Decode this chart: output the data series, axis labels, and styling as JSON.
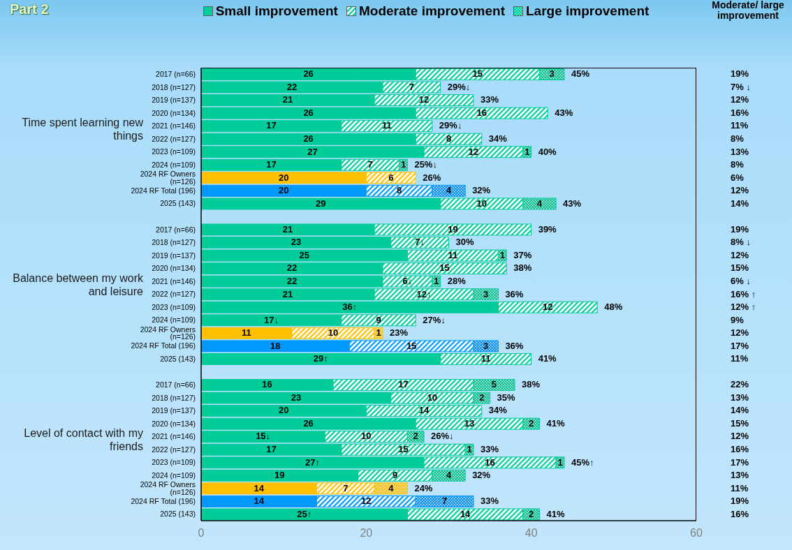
{
  "chart_data": {
    "type": "bar",
    "orientation": "horizontal",
    "stacked": true,
    "title": "Part 2",
    "legend": "top",
    "grid": false,
    "xlim": [
      0,
      60
    ],
    "xticks": [
      0,
      20,
      40,
      60
    ],
    "categories": [
      "2017 (n=66)",
      "2018 (n=127)",
      "2019 (n=137)",
      "2020 (n=134)",
      "2021 (n=146)",
      "2022 (n=127)",
      "2023 (n=109)",
      "2024 (n=109)",
      "2024 RF Owners (n=126)",
      "2024 RF Total (196)",
      "2025 (143)",
      null,
      "2017 (n=66)",
      "2018 (n=127)",
      "2019 (n=137)",
      "2020 (n=134)",
      "2021 (n=146)",
      "2022 (n=127)",
      "2023 (n=109)",
      "2024 (n=109)",
      "2024 RF Owners (n=126)",
      "2024 RF Total (196)",
      "2025 (143)",
      null,
      "2017 (n=66)",
      "2018 (n=127)",
      "2019 (n=137)",
      "2020 (n=134)",
      "2021 (n=146)",
      "2022 (n=127)",
      "2023 (n=109)",
      "2024 (n=109)",
      "2024 RF Owners (n=126)",
      "2024 RF Total (196)",
      "2025 (143)"
    ],
    "annotations": [
      "Time spent learning new things",
      "Balance between my work and leisure",
      "Level of contact with my friends"
    ],
    "y2label": "Moderate/ large improvement",
    "y2_categories": [
      "19%",
      "7% ↓",
      "12%",
      "16%",
      "11%",
      "8%",
      "13%",
      "8%",
      "6%",
      "12%",
      "14%",
      null,
      "19%",
      "8% ↓",
      "12%",
      "15%",
      "6% ↓",
      "16% ↑",
      "12% ↑",
      "9%",
      "12%",
      "17%",
      "11%",
      null,
      "22%",
      "13%",
      "14%",
      "15%",
      "12%",
      "16%",
      "17%",
      "13%",
      "11%",
      "19%",
      "16%"
    ],
    "totals": [
      "45%",
      "29%↓",
      "33%",
      "43%",
      "29%↓",
      "34%",
      "40%",
      "25%↓",
      "26%",
      "32%",
      "43%",
      null,
      "39%",
      "30%",
      "37%",
      "38%",
      "28%",
      "36%",
      "48%",
      "27%↓",
      "23%",
      "36%",
      "41%",
      null,
      "38%",
      "35%",
      "34%",
      "41%",
      "26%↓",
      "33%",
      "45%↑",
      "32%",
      "24%",
      "33%",
      "41%"
    ],
    "series": [
      {
        "name": "Small improvement",
        "color": "#00cc99",
        "colors": [
          "#00cc99",
          "#00cc99",
          "#00cc99",
          "#00cc99",
          "#00cc99",
          "#00cc99",
          "#00cc99",
          "#00cc99",
          "#ffc000",
          "#0099ff",
          "#00cc99",
          null,
          "#00cc99",
          "#00cc99",
          "#00cc99",
          "#00cc99",
          "#00cc99",
          "#00cc99",
          "#00cc99",
          "#00cc99",
          "#ffc000",
          "#0099ff",
          "#00cc99",
          null,
          "#00cc99",
          "#00cc99",
          "#00cc99",
          "#00cc99",
          "#00cc99",
          "#00cc99",
          "#00cc99",
          "#00cc99",
          "#ffc000",
          "#0099ff",
          "#00cc99"
        ],
        "values": [
          26,
          22,
          21,
          26,
          17,
          26,
          27,
          17,
          20,
          20,
          29,
          null,
          21,
          23,
          25,
          22,
          22,
          21,
          36,
          17,
          11,
          18,
          29,
          null,
          16,
          23,
          20,
          26,
          15,
          17,
          27,
          19,
          14,
          14,
          25
        ],
        "value_labels": [
          "26",
          "22",
          "21",
          "26",
          "17",
          "26",
          "27",
          "17",
          "20",
          "20",
          "29",
          null,
          "21",
          "23",
          "25",
          "22",
          "22",
          "21",
          "36↑",
          "17↓",
          "11",
          "18",
          "29↑",
          null,
          "16",
          "23",
          "20",
          "26",
          "15↓",
          "17",
          "27↑",
          "19",
          "14",
          "14",
          "25↑"
        ]
      },
      {
        "name": "Moderate improvement",
        "color": "#00cc99",
        "colors": [
          "#00cc99",
          "#00cc99",
          "#00cc99",
          "#00cc99",
          "#00cc99",
          "#00cc99",
          "#00cc99",
          "#00cc99",
          "#ffc000",
          "#0099ff",
          "#00cc99",
          null,
          "#00cc99",
          "#00cc99",
          "#00cc99",
          "#00cc99",
          "#00cc99",
          "#00cc99",
          "#00cc99",
          "#00cc99",
          "#ffc000",
          "#0099ff",
          "#00cc99",
          null,
          "#00cc99",
          "#00cc99",
          "#00cc99",
          "#00cc99",
          "#00cc99",
          "#00cc99",
          "#00cc99",
          "#00cc99",
          "#ffc000",
          "#0099ff",
          "#00cc99"
        ],
        "values": [
          15,
          7,
          12,
          16,
          11,
          8,
          12,
          7,
          6,
          8,
          10,
          null,
          19,
          7,
          11,
          15,
          6,
          12,
          12,
          9,
          10,
          15,
          11,
          null,
          17,
          10,
          14,
          13,
          10,
          15,
          16,
          9,
          7,
          12,
          14
        ],
        "value_labels": [
          "15",
          "7",
          "12",
          "16",
          "11",
          "8",
          "12",
          "7",
          "6",
          "8",
          "10",
          null,
          "19",
          "7↓",
          "11",
          "15",
          "6↓",
          "12↑",
          "12",
          "9",
          "10",
          "15",
          "11",
          null,
          "17",
          "10",
          "14",
          "13",
          "10",
          "15",
          "16",
          "9",
          "7",
          "12",
          "14"
        ]
      },
      {
        "name": "Large improvement",
        "color": "#00cc99",
        "colors": [
          "#00cc99",
          "#00cc99",
          "#00cc99",
          "#00cc99",
          "#00cc99",
          "#00cc99",
          "#00cc99",
          "#00cc99",
          "#ffc000",
          "#0099ff",
          "#00cc99",
          null,
          "#00cc99",
          "#00cc99",
          "#00cc99",
          "#00cc99",
          "#00cc99",
          "#00cc99",
          "#00cc99",
          "#00cc99",
          "#ffc000",
          "#0099ff",
          "#00cc99",
          null,
          "#00cc99",
          "#00cc99",
          "#00cc99",
          "#00cc99",
          "#00cc99",
          "#00cc99",
          "#00cc99",
          "#00cc99",
          "#ffc000",
          "#0099ff",
          "#00cc99"
        ],
        "values": [
          3,
          null,
          null,
          null,
          null,
          null,
          1,
          1,
          null,
          4,
          4,
          null,
          null,
          null,
          1,
          null,
          1,
          3,
          null,
          null,
          1,
          3,
          null,
          null,
          5,
          2,
          null,
          2,
          2,
          1,
          1,
          4,
          4,
          7,
          2
        ],
        "value_labels": [
          "3",
          null,
          null,
          null,
          null,
          null,
          "1",
          "1",
          null,
          "4",
          "4",
          null,
          null,
          null,
          "1",
          null,
          "1",
          "3",
          null,
          null,
          "1",
          "3",
          null,
          null,
          "5",
          "2",
          null,
          "2",
          "2",
          "1",
          "1",
          "4",
          "4",
          "7",
          "2"
        ]
      }
    ]
  }
}
